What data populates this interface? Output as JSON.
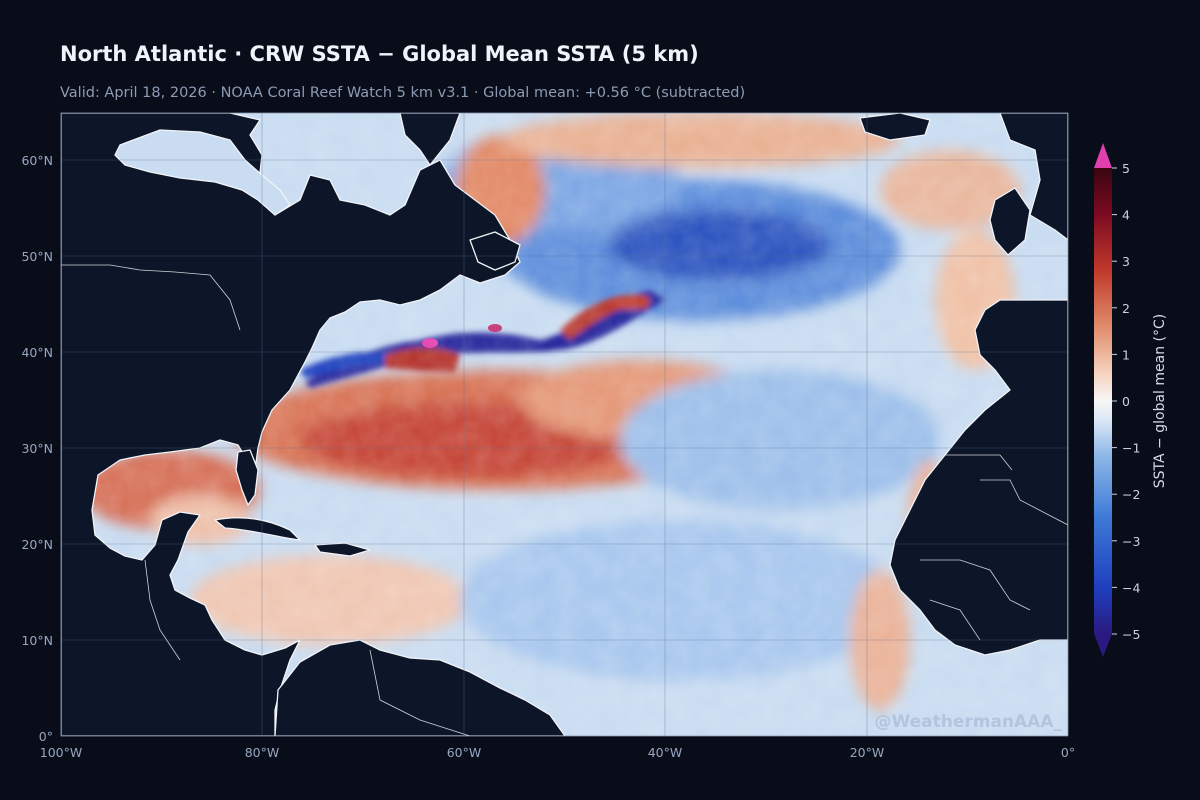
{
  "title": "North Atlantic · CRW SSTA − Global Mean SSTA (5 km)",
  "subtitle": "Valid: April 18, 2026  ·  NOAA Coral Reef Watch 5 km v3.1  ·  Global mean: +0.56 °C (subtracted)",
  "colorbar": {
    "label": "SSTA − global mean (°C)",
    "min": -5,
    "max": 5,
    "ticks": [
      "5",
      "4",
      "3",
      "2",
      "1",
      "0",
      "−1",
      "−2",
      "−3",
      "−4",
      "−5"
    ],
    "extend": "both",
    "colors": [
      "#2a1a80",
      "#1f3fbf",
      "#3e7ad6",
      "#8bb6e6",
      "#dbe8f5",
      "#f7f7f7",
      "#f6d2bf",
      "#e08c6a",
      "#c0392b",
      "#7c0a22",
      "#3a0510",
      "#e23fae"
    ]
  },
  "map": {
    "x_ticks": [
      "100°W",
      "80°W",
      "60°W",
      "40°W",
      "20°W",
      "0°"
    ],
    "y_ticks": [
      "60°N",
      "50°N",
      "40°N",
      "30°N",
      "20°N",
      "10°N",
      "0°"
    ],
    "lon_range": [
      -100,
      0
    ],
    "lat_range": [
      0,
      65
    ],
    "land_color": "#0c1628",
    "ocean_neutral": "#f2f4f8",
    "grid": true
  },
  "watermark": "@WeathermanAAA_"
}
